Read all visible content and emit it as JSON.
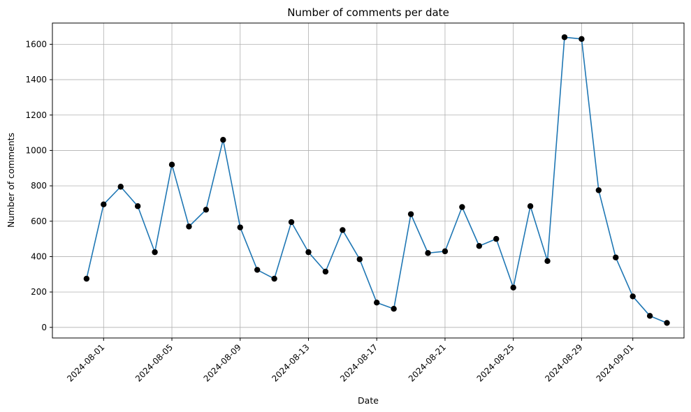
{
  "chart_data": {
    "type": "line",
    "title": "Number of comments per date",
    "xlabel": "Date",
    "ylabel": "Number of comments",
    "grid": true,
    "markers": "scatter",
    "colors": {
      "line": "#1f77b4",
      "marker": "#000000",
      "grid": "#b0b0b0",
      "axes": "#000000"
    },
    "ylim": [
      -60,
      1720
    ],
    "xlim": [
      "2024-07-29",
      "2024-09-04"
    ],
    "yticks": [
      0,
      200,
      400,
      600,
      800,
      1000,
      1200,
      1400,
      1600
    ],
    "xticks": [
      "2024-08-01",
      "2024-08-05",
      "2024-08-09",
      "2024-08-13",
      "2024-08-17",
      "2024-08-21",
      "2024-08-25",
      "2024-08-29",
      "2024-09-01"
    ],
    "series": [
      {
        "x": [
          "2024-07-31",
          "2024-08-01",
          "2024-08-02",
          "2024-08-03",
          "2024-08-04",
          "2024-08-05",
          "2024-08-06",
          "2024-08-07",
          "2024-08-08",
          "2024-08-09",
          "2024-08-10",
          "2024-08-11",
          "2024-08-12",
          "2024-08-13",
          "2024-08-14",
          "2024-08-15",
          "2024-08-16",
          "2024-08-17",
          "2024-08-18",
          "2024-08-19",
          "2024-08-20",
          "2024-08-21",
          "2024-08-22",
          "2024-08-23",
          "2024-08-24",
          "2024-08-25",
          "2024-08-26",
          "2024-08-27",
          "2024-08-28",
          "2024-08-29",
          "2024-08-30",
          "2024-08-31",
          "2024-09-01",
          "2024-09-02",
          "2024-09-03"
        ],
        "values": [
          275,
          695,
          795,
          685,
          425,
          920,
          570,
          665,
          1060,
          565,
          325,
          275,
          595,
          425,
          315,
          550,
          385,
          140,
          105,
          640,
          420,
          430,
          680,
          460,
          500,
          225,
          685,
          375,
          1640,
          1630,
          775,
          395,
          175,
          65,
          25
        ]
      }
    ]
  }
}
